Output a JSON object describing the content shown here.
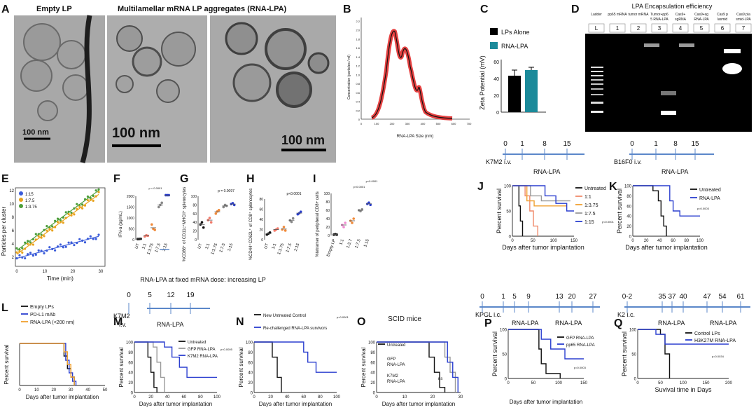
{
  "letters": [
    "A",
    "B",
    "C",
    "D",
    "E",
    "F",
    "G",
    "H",
    "I",
    "J",
    "K",
    "L",
    "M",
    "N",
    "O",
    "P",
    "Q"
  ],
  "panelA": {
    "title_empty": "Empty LP",
    "title_multi": "Multilamellar mRNA LP aggregates (RNA-LPA)",
    "scale1": "100 nm",
    "scale2": "100 nm",
    "scale3": "100 nm"
  },
  "panelB": {
    "ylabel": "Concentration (particles / ml)",
    "xlabel": "RNA-LPA  Size (nm)",
    "yticks": [
      "2.2",
      "2.0",
      "1.8",
      "1.6",
      "1.4",
      "1.2",
      "1.0",
      "0.8",
      "0.6",
      "0.4",
      "0.2",
      "0"
    ],
    "xticks": [
      "0",
      "100",
      "200",
      "300",
      "400",
      "500",
      "600",
      "700"
    ]
  },
  "panelC": {
    "legend_lp": "LPs Alone",
    "legend_rna": "RNA-LPA",
    "ylabel": "Zeta Potential (mV)",
    "yticks": [
      "60",
      "40",
      "20",
      "0"
    ],
    "color_lp": "#000000",
    "color_rna": "#1b8a9a"
  },
  "panelD": {
    "title": "LPA Encapsulation efficiency",
    "lanes": [
      "Ladder",
      "pp65 mRNA",
      "tumor mRNA",
      "Tumor+pp65 RNA-LPA",
      "Cas9+ sgRNA",
      "Cas9+sg RNA-LPA",
      "Cas9 plasmid",
      "Cas9 plasmid-LPA"
    ],
    "numbers": [
      "L",
      "1",
      "2",
      "3",
      "4",
      "5",
      "6",
      "7"
    ]
  },
  "panelE": {
    "legend": [
      "1:15",
      "1:7.5",
      "1:3.75"
    ],
    "colors": [
      "#3a5bd9",
      "#e8a21c",
      "#4d9e3a"
    ],
    "ylabel": "Particles per cluster",
    "xlabel": "Time (min)",
    "yticks": [
      "12",
      "10",
      "8",
      "6",
      "4",
      "2"
    ],
    "xticks": [
      "0",
      "10",
      "20",
      "30"
    ]
  },
  "panelF": {
    "ylabel": "IFN-α (pg/mL)",
    "yticks": [
      "2000",
      "1500",
      "1000",
      "500",
      "0"
    ],
    "pval": "p < 0.0001",
    "xcats": [
      "UT",
      "1:1",
      "1:3.75",
      "1:7.5",
      "1:15"
    ]
  },
  "panelG": {
    "ylabel": "%CD86⁺ of CD11c⁺MHCII⁺ splenocytes",
    "yticks": [
      "100",
      "80",
      "60",
      "40",
      "20",
      "0"
    ],
    "pval": "p = 0.0097",
    "xcats": [
      "UT",
      "1:1",
      "1:3.75",
      "1:7.5",
      "1:15"
    ]
  },
  "panelH": {
    "ylabel": "%CD44⁺CD62L⁺ of CD8⁺ splenocytes",
    "yticks": [
      "80",
      "60",
      "40",
      "20",
      "0"
    ],
    "pval": "p<0.0001",
    "xcats": [
      "UT",
      "1:1",
      "1:3.75",
      "1:7.5",
      "1:15"
    ]
  },
  "panelI": {
    "ylabel": "%tetramer of peripheral CD8+ cells",
    "yticks": [
      "100",
      "80",
      "60",
      "40",
      "20",
      "0"
    ],
    "pval1": "p<0.0001",
    "pval2": "p<0.0001",
    "xcats": [
      "Empty LP",
      "1:1",
      "1:3.7",
      "1:7.5",
      "1:15"
    ]
  },
  "doseCaption": "RNA-LPA at fixed mRNA dose: increasing LP",
  "schedK7M2top": {
    "label": "K7M2 i.v.",
    "ticks": [
      "0",
      "1",
      "8",
      "15"
    ],
    "rna": "RNA-LPA"
  },
  "schedB16": {
    "label": "B16F0 i.v.",
    "ticks": [
      "0",
      "1",
      "8",
      "15"
    ],
    "rna": "RNA-LPA"
  },
  "schedKPGL": {
    "label": "KPGL i.c.",
    "ticks": [
      "0",
      "1",
      "5",
      "9",
      "13",
      "20",
      "27"
    ],
    "rna1": "RNA-LPA",
    "rna2": "RNA-LPA"
  },
  "schedK2": {
    "label": "K2 i.c.",
    "ticks": [
      "0-2",
      "35",
      "37",
      "40",
      "47",
      "54",
      "61"
    ],
    "rna1": "RNA-LPA",
    "rna2": "RNA-LPA"
  },
  "schedK7M2M": {
    "label1": "K7M2",
    "label2": "i.v.",
    "ticks": [
      "0",
      "5",
      "12",
      "19"
    ],
    "rna": "RNA-LPA"
  },
  "panelJ": {
    "ylabel": "Percent survival",
    "xlabel": "Days after tumor implantation",
    "yticks": [
      "100",
      "50",
      "0"
    ],
    "xticks": [
      "0",
      "50",
      "100",
      "150"
    ],
    "legend": [
      "Untreated",
      "1:1",
      "1:3.75",
      "1:7.5",
      "1:15"
    ],
    "pval": "p<0.0001"
  },
  "panelK": {
    "ylabel": "Percent survival",
    "xlabel": "Days after tumor implantation",
    "yticks": [
      "100",
      "80",
      "60",
      "40",
      "20",
      "0"
    ],
    "xticks": [
      "0",
      "20",
      "40",
      "60",
      "80",
      "100"
    ],
    "legend": [
      "Untreated",
      "RNA-LPA"
    ],
    "pval": "p=0.0003"
  },
  "panelL": {
    "ylabel": "Percent survival",
    "xlabel": "Days after tumor implantation",
    "legend": [
      "Empty LPs",
      "PD-L1 mAb",
      "RNA-LPA (<200 nm)"
    ],
    "xticks": [
      "0",
      "10",
      "20",
      "30",
      "40",
      "50"
    ]
  },
  "panelM": {
    "ylabel": "Percent survival",
    "xlabel": "Days after tumor implantation",
    "yticks": [
      "100",
      "80",
      "60",
      "40",
      "20",
      "0"
    ],
    "xticks": [
      "0",
      "20",
      "40",
      "60",
      "80",
      "100"
    ],
    "legend": [
      "Untreated",
      "GFP RNA-LPA",
      "K7M2 RNA-LPA"
    ],
    "pval": "p<0.0005"
  },
  "panelN": {
    "ylabel": "Percent survival",
    "xlabel": "Days after tumor implantation",
    "yticks": [
      "100",
      "80",
      "60",
      "40",
      "20",
      "0"
    ],
    "xticks": [
      "0",
      "20",
      "40",
      "60",
      "80",
      "100"
    ],
    "legend": [
      "New Untreated Control",
      "Re-challenged RNA-LPA survivors"
    ],
    "pval": "p<0.0001"
  },
  "panelO": {
    "title": "SCID mice",
    "ylabel": "Percent survival",
    "xlabel": "Days after tumor implantation",
    "yticks": [
      "100",
      "80",
      "60",
      "40",
      "20",
      "0"
    ],
    "xticks": [
      "0",
      "10",
      "20",
      "30"
    ],
    "legend": [
      "Untreated",
      "GFP RNA-LPA",
      "K7M2 RNA-LPA"
    ],
    "ns": "ns"
  },
  "panelP": {
    "ylabel": "Percent survival",
    "yticks": [
      "100",
      "50",
      "0"
    ],
    "xticks": [
      "0",
      "50",
      "100",
      "150"
    ],
    "legend": [
      "GFP RNA-LPA",
      "pp65 RNA-LPA"
    ],
    "pval": "p=0.0003"
  },
  "panelQ": {
    "ylabel": "Percent survival",
    "xlabel": "Suvival time in Days",
    "yticks": [
      "100",
      "50",
      "0"
    ],
    "xticks": [
      "0",
      "50",
      "100",
      "150",
      "200"
    ],
    "legend": [
      "Control LPs",
      "H3K27M RNA-LPA"
    ],
    "pval": "p=0.0034"
  },
  "colors": {
    "blue": "#2b3fcf",
    "orange": "#f0a030",
    "gray": "#9a9a9a",
    "black": "#111111",
    "salmon": "#f08a6a",
    "sched": "#5b87c9"
  }
}
